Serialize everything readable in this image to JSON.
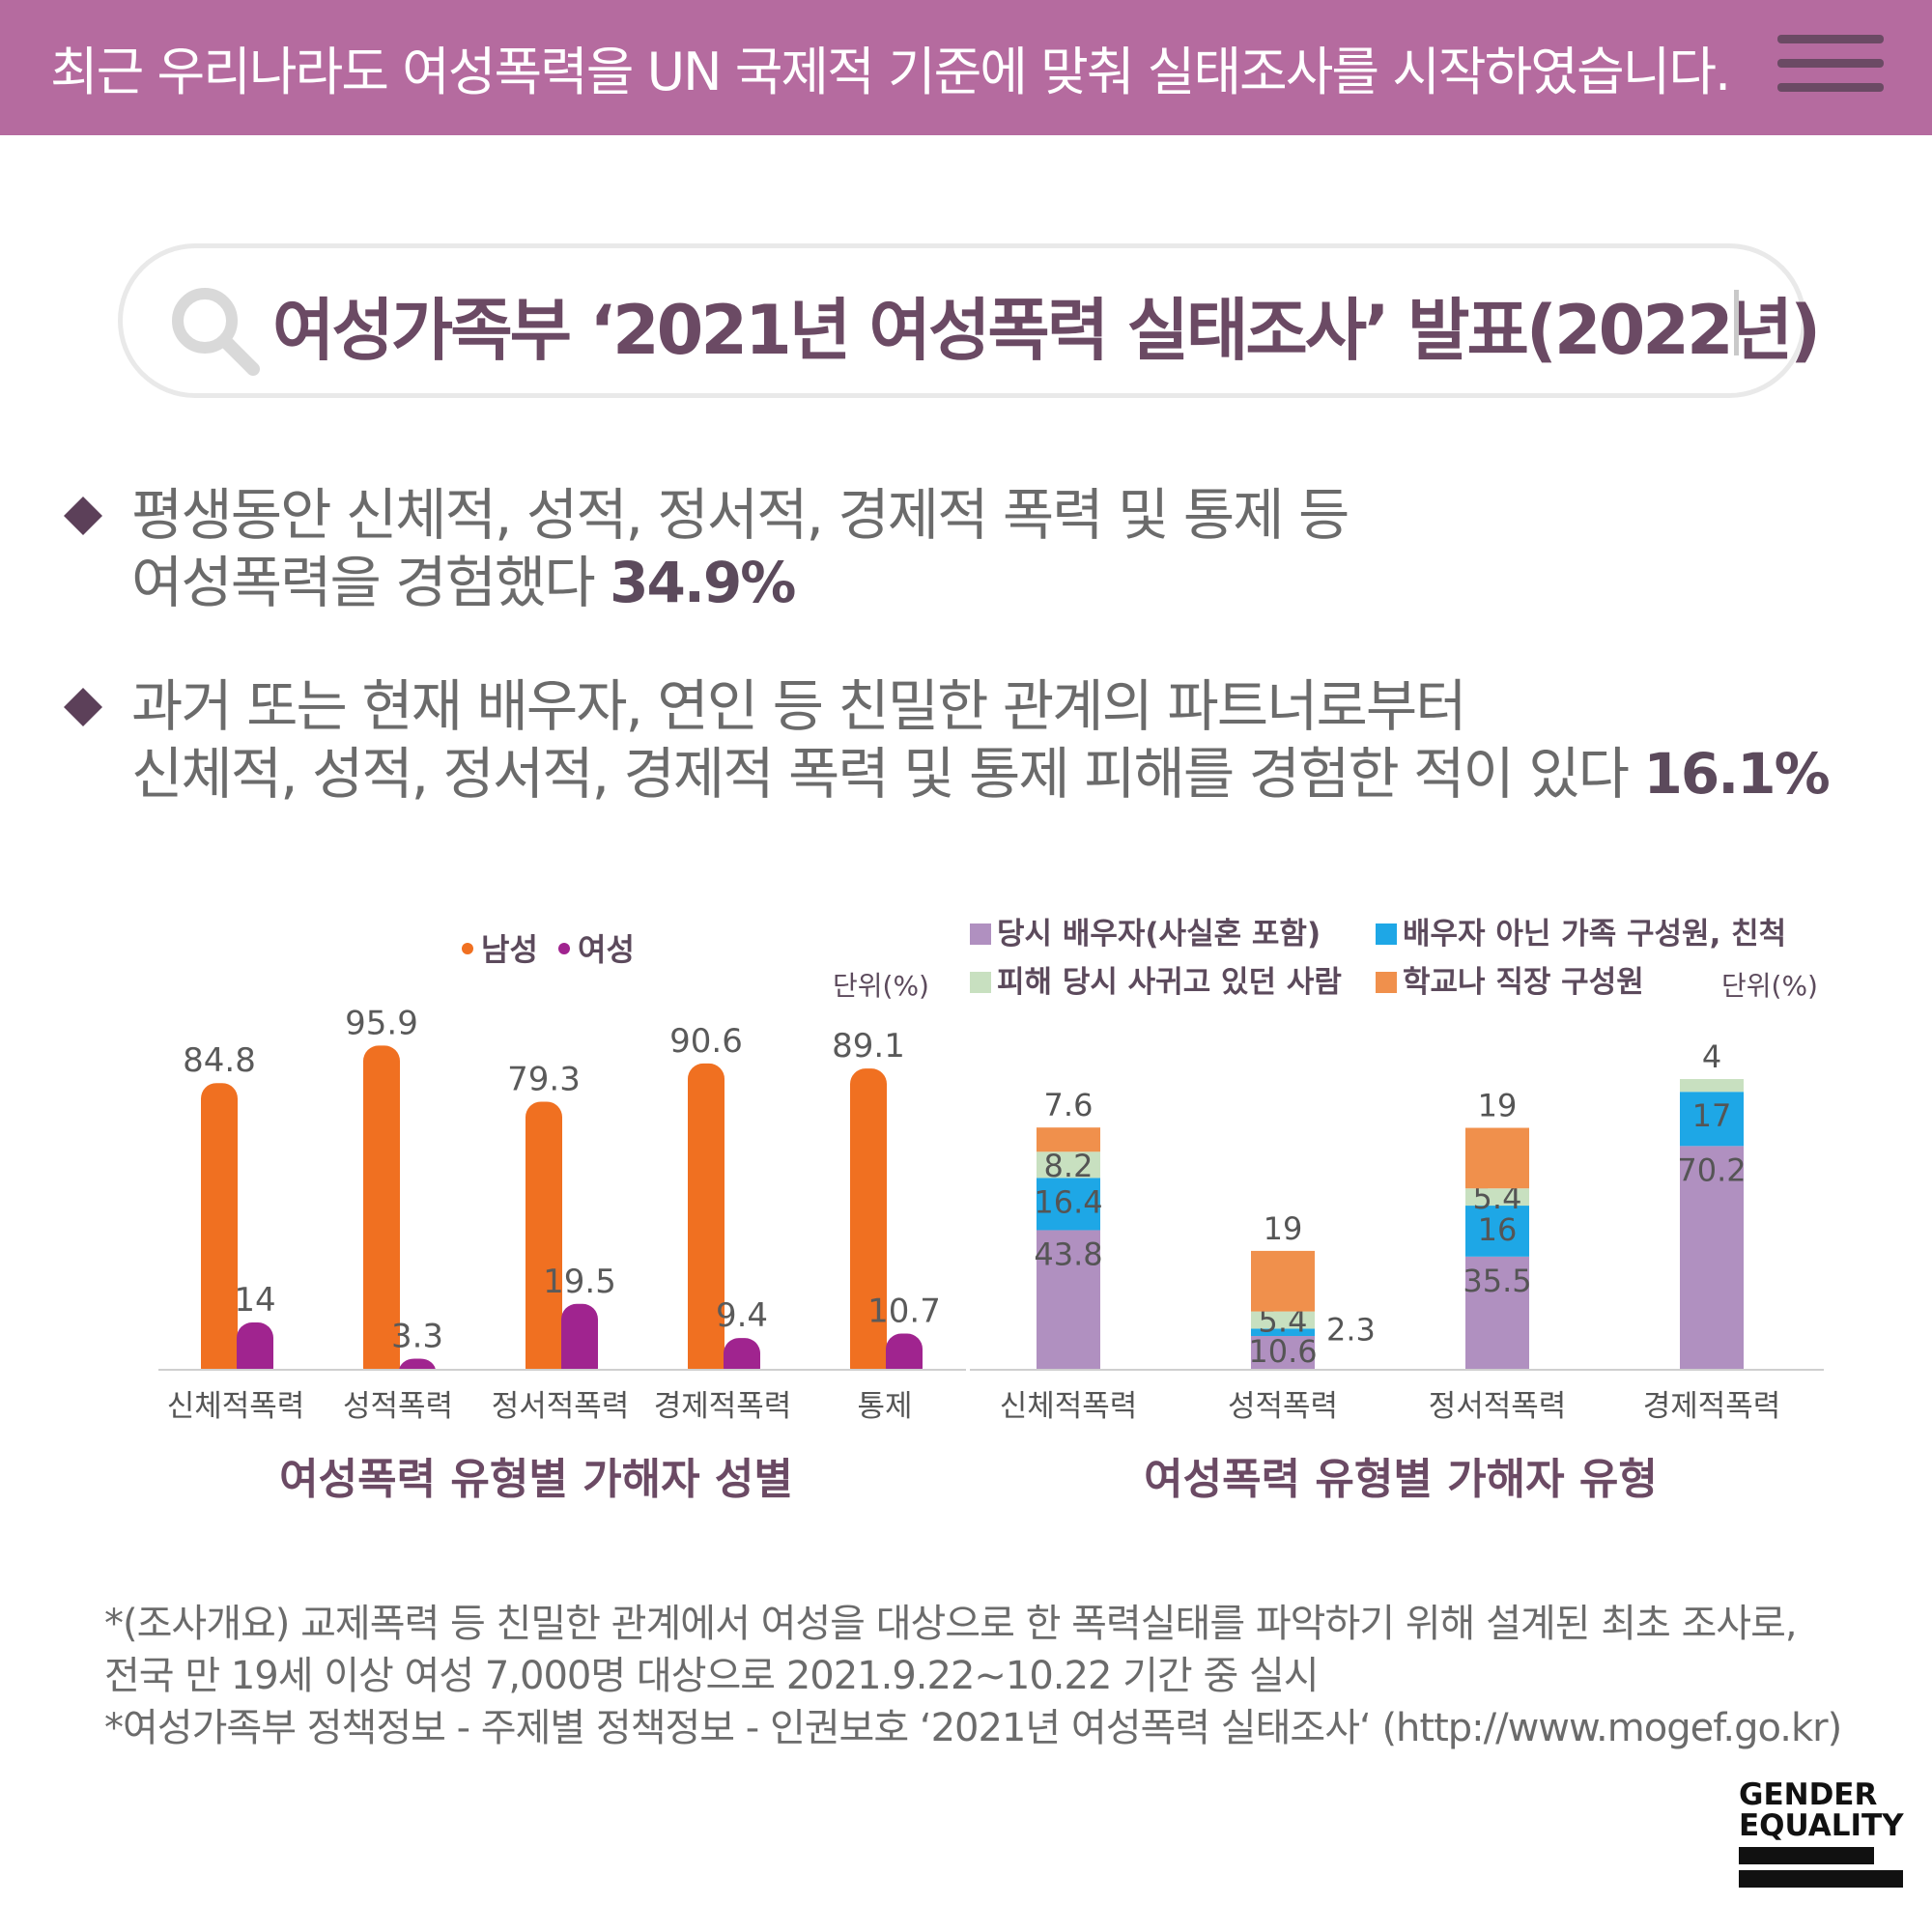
{
  "header": {
    "title": "최근 우리나라도 여성폭력을 UN 국제적 기준에 맞춰 실태조사를 시작하였습니다."
  },
  "search": {
    "text": "여성가족부 ‘2021년 여성폭력 실태조사’ 발표(2022년)"
  },
  "bullets": [
    {
      "line1": "평생동안 신체적, 성적, 정서적, 경제적 폭력 및 통제 등",
      "line2": "여성폭력을 경험했다 ",
      "value": "34.9%"
    },
    {
      "line1": "과거 또는 현재 배우자, 연인 등 친밀한 관계의 파트너로부터",
      "line2": "신체적, 성적, 정서적, 경제적 폭력 및 통제 피해를 경험한 적이 있다 ",
      "value": "16.1%"
    }
  ],
  "chart_data": [
    {
      "type": "bar",
      "title": "여성폭력 유형별 가해자 성별",
      "unit": "단위(%)",
      "categories": [
        "신체적폭력",
        "성적폭력",
        "정서적폭력",
        "경제적폭력",
        "통제"
      ],
      "series": [
        {
          "name": "남성",
          "color": "#f07021",
          "values": [
            84.8,
            95.9,
            79.3,
            90.6,
            89.1
          ]
        },
        {
          "name": "여성",
          "color": "#a0248f",
          "values": [
            14,
            3.3,
            19.5,
            9.4,
            10.7
          ]
        }
      ],
      "ylim": [
        0,
        100
      ]
    },
    {
      "type": "bar",
      "stacked": true,
      "title": "여성폭력 유형별 가해자 유형",
      "unit": "단위(%)",
      "categories": [
        "신체적폭력",
        "성적폭력",
        "정서적폭력",
        "경제적폭력"
      ],
      "series": [
        {
          "name": "당시 배우자(사실혼 포함)",
          "color": "#b090c0",
          "values": [
            43.8,
            10.6,
            35.5,
            70.2
          ]
        },
        {
          "name": "배우자 아닌 가족 구성원, 친척",
          "color": "#1ea7e6",
          "values": [
            16.4,
            2.3,
            16,
            17
          ]
        },
        {
          "name": "피해 당시 사귀고 있던 사람",
          "color": "#c8e0c0",
          "values": [
            8.2,
            5.4,
            5.4,
            4
          ]
        },
        {
          "name": "학교나 직장 구성원",
          "color": "#f0904c",
          "values": [
            7.6,
            19,
            19,
            0
          ]
        }
      ],
      "labels": [
        [
          "43.8",
          "16.4",
          "8.2",
          "7.6"
        ],
        [
          "10.6",
          "2.3",
          "5.4",
          "19"
        ],
        [
          "35.5",
          "16",
          "5.4",
          "19"
        ],
        [
          "70.2",
          "17",
          "4",
          ""
        ]
      ],
      "ylim": [
        0,
        100
      ]
    }
  ],
  "footnotes": [
    "*(조사개요) 교제폭력 등 친밀한 관계에서 여성을 대상으로 한 폭력실태를 파악하기 위해 설계된 최초 조사로,",
    "  전국 만 19세 이상 여성 7,000명 대상으로 2021.9.22~10.22 기간 중 실시",
    "*여성가족부 정책정보 - 주제별 정책정보 - 인권보호 ‘2021년 여성폭력 실태조사‘ (http://www.mogef.go.kr)"
  ],
  "logo": {
    "line1": "GENDER",
    "line2": "EQUALITY"
  },
  "colors": {
    "header_bg": "#b56b9f",
    "accent": "#6b4a64"
  }
}
